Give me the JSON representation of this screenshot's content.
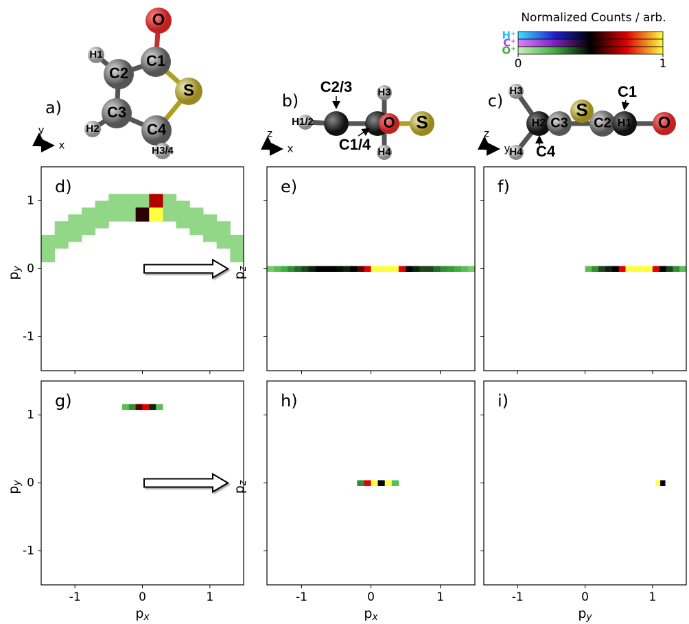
{
  "chart_data": [
    {
      "type": "heatmap",
      "label": "d)",
      "ylabel": "p",
      "ylabel_sub": "y",
      "xlim": [
        -1.5,
        1.5
      ],
      "ylim": [
        -1.5,
        1.5
      ],
      "xticks": [
        -1,
        0,
        1
      ],
      "yticks": [
        -1,
        0,
        1
      ],
      "x": [
        -1.4,
        -1.4,
        -1.2,
        -1.2,
        -1.0,
        -1.0,
        -0.8,
        -0.8,
        -0.6,
        -0.6,
        -0.4,
        -0.4,
        -0.2,
        -0.2,
        0,
        0,
        0.2,
        0.2,
        0.4,
        0.4,
        0.6,
        0.6,
        0.8,
        0.8,
        1.0,
        1.0,
        1.2,
        1.2,
        1.4,
        1.4,
        0,
        0.2,
        0.2
      ],
      "y": [
        0.4,
        0.2,
        0.6,
        0.4,
        0.7,
        0.5,
        0.8,
        0.6,
        0.9,
        0.7,
        1.0,
        0.8,
        1.0,
        0.8,
        1.0,
        0.8,
        1.0,
        0.8,
        1.0,
        0.8,
        0.9,
        0.7,
        0.8,
        0.6,
        0.7,
        0.5,
        0.6,
        0.4,
        0.4,
        0.2,
        0.8,
        1.0,
        0.8
      ],
      "values": [
        0.1,
        0.1,
        0.1,
        0.1,
        0.1,
        0.1,
        0.1,
        0.1,
        0.1,
        0.1,
        0.1,
        0.1,
        0.1,
        0.1,
        0.1,
        0.1,
        0.1,
        0.1,
        0.1,
        0.1,
        0.1,
        0.1,
        0.1,
        0.1,
        0.1,
        0.1,
        0.1,
        0.1,
        0.1,
        0.1,
        0.55,
        0.7,
        1
      ]
    },
    {
      "type": "heatmap",
      "label": "e)",
      "ylabel": "p",
      "ylabel_sub": "z",
      "xlim": [
        -1.5,
        1.5
      ],
      "ylim": [
        -1.5,
        1.5
      ],
      "xticks": [
        -1,
        0,
        1
      ],
      "yticks": [
        -1,
        0,
        1
      ],
      "x": [
        -1.45,
        -1.35,
        -1.25,
        -1.15,
        -1.05,
        -0.95,
        -0.85,
        -0.75,
        -0.65,
        -0.55,
        -0.45,
        -0.35,
        -0.25,
        -0.15,
        -0.05,
        0.05,
        0.15,
        0.25,
        0.35,
        0.45,
        0.55,
        0.65,
        0.75,
        0.85,
        0.95,
        1.05,
        1.15,
        1.25,
        1.35,
        1.45
      ],
      "y": [
        0,
        0,
        0,
        0,
        0,
        0,
        0,
        0,
        0,
        0,
        0,
        0,
        0,
        0,
        0,
        0,
        0,
        0,
        0,
        0,
        0,
        0,
        0,
        0,
        0,
        0,
        0,
        0,
        0,
        0
      ],
      "values": [
        0.15,
        0.2,
        0.25,
        0.3,
        0.35,
        0.4,
        0.45,
        0.5,
        0.5,
        0.5,
        0.48,
        0.45,
        0.5,
        0.6,
        0.75,
        1,
        1,
        1,
        1,
        0.75,
        0.5,
        0.45,
        0.4,
        0.4,
        0.35,
        0.3,
        0.28,
        0.25,
        0.2,
        0.15
      ]
    },
    {
      "type": "heatmap",
      "label": "f)",
      "xlim": [
        -1.5,
        1.5
      ],
      "ylim": [
        -1.5,
        1.5
      ],
      "xticks": [
        -1,
        0,
        1
      ],
      "yticks": [
        -1,
        0,
        1
      ],
      "x": [
        0.05,
        0.15,
        0.25,
        0.35,
        0.45,
        0.55,
        0.65,
        0.75,
        0.85,
        0.95,
        1.05,
        1.15,
        1.25,
        1.35,
        1.45
      ],
      "y": [
        0,
        0,
        0,
        0,
        0,
        0,
        0,
        0,
        0,
        0,
        0,
        0,
        0,
        0,
        0
      ],
      "values": [
        0.2,
        0.3,
        0.4,
        0.45,
        0.5,
        0.75,
        1,
        1,
        1,
        1,
        0.75,
        0.5,
        0.4,
        0.3,
        0.2
      ]
    },
    {
      "type": "heatmap",
      "label": "g)",
      "ylabel": "p",
      "ylabel_sub": "y",
      "xlabel": "p",
      "xlabel_sub": "x",
      "xlim": [
        -1.5,
        1.5
      ],
      "ylim": [
        -1.5,
        1.5
      ],
      "xticks": [
        -1,
        0,
        1
      ],
      "yticks": [
        -1,
        0,
        1
      ],
      "x": [
        -0.25,
        -0.15,
        -0.05,
        0.05,
        0.15,
        0.25
      ],
      "y": [
        1.12,
        1.12,
        1.12,
        1.12,
        1.12,
        1.12
      ],
      "values": [
        0.2,
        0.3,
        0.6,
        0.75,
        0.45,
        0.2
      ]
    },
    {
      "type": "heatmap",
      "label": "h)",
      "ylabel": "p",
      "ylabel_sub": "z",
      "xlabel": "p",
      "xlabel_sub": "x",
      "xlim": [
        -1.5,
        1.5
      ],
      "ylim": [
        -1.5,
        1.5
      ],
      "xticks": [
        -1,
        0,
        1
      ],
      "yticks": [
        -1,
        0,
        1
      ],
      "x": [
        -0.15,
        -0.05,
        0.05,
        0.15,
        0.25,
        0.35
      ],
      "y": [
        0,
        0,
        0,
        0,
        0,
        0
      ],
      "values": [
        0.3,
        0.75,
        1,
        0.5,
        1,
        0.2
      ]
    },
    {
      "type": "heatmap",
      "label": "i)",
      "xlabel": "p",
      "xlabel_sub": "y",
      "xlim": [
        -1.5,
        1.5
      ],
      "ylim": [
        -1.5,
        1.5
      ],
      "xticks": [
        -1,
        0,
        1
      ],
      "yticks": [
        -1,
        0,
        1
      ],
      "x": [
        1.08,
        1.15
      ],
      "y": [
        0,
        0
      ],
      "values": [
        1,
        0.5
      ]
    }
  ],
  "colorbar": {
    "title": "Normalized Counts / arb.",
    "lim": [
      0,
      1
    ],
    "ticks": [
      0,
      1
    ],
    "rows": [
      "H⁺",
      "C⁺",
      "O⁺"
    ]
  },
  "molecules": [
    {
      "label": "a)",
      "axes": [
        "y",
        "x"
      ],
      "atoms": [
        "O",
        "C1",
        "S",
        "C2",
        "C3",
        "C4",
        "H1",
        "H2",
        "H3/4"
      ]
    },
    {
      "label": "b)",
      "axes": [
        "z",
        "x"
      ],
      "atoms": [
        "C2/3",
        "H1/2",
        "C1/4",
        "O",
        "S",
        "H3",
        "H4"
      ]
    },
    {
      "label": "c)",
      "axes": [
        "z",
        "y"
      ],
      "atoms": [
        "H3",
        "H4",
        "H2",
        "C3",
        "S",
        "C2",
        "H1",
        "C1",
        "O",
        "C4"
      ]
    }
  ]
}
